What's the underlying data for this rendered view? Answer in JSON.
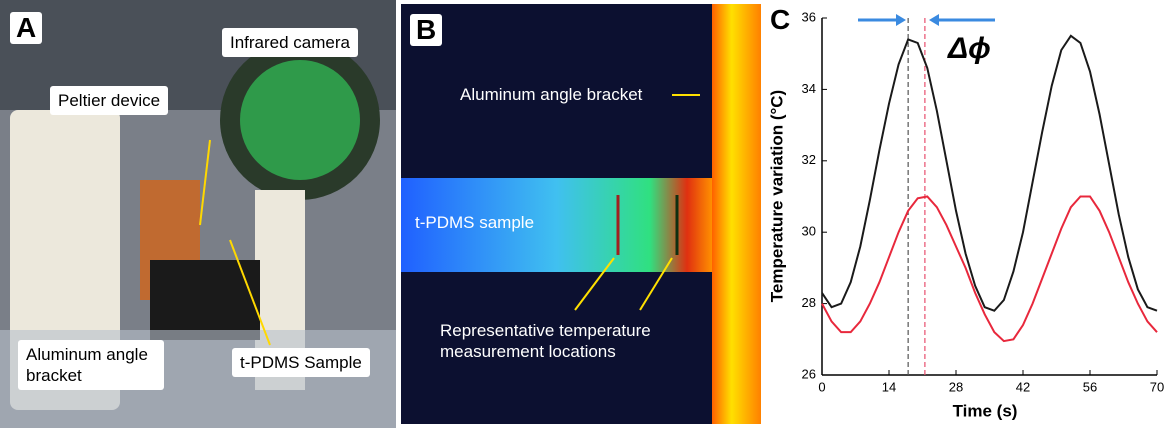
{
  "panel_a": {
    "letter": "A",
    "labels": [
      "Infrared camera",
      "Peltier device",
      "Aluminum angle bracket",
      "t-PDMS Sample"
    ]
  },
  "panel_b": {
    "letter": "B",
    "labels": [
      "Aluminum angle bracket",
      "t-PDMS sample",
      "Representative temperature measurement locations"
    ]
  },
  "chart_data": {
    "type": "line",
    "panel_label": "C",
    "annotation": "Δϕ",
    "x_label": "Time (s)",
    "y_label": "Temperature variation (°C)",
    "x": [
      0,
      2,
      4,
      6,
      8,
      10,
      12,
      14,
      16,
      18,
      20,
      22,
      24,
      26,
      28,
      30,
      32,
      34,
      36,
      38,
      40,
      42,
      44,
      46,
      48,
      50,
      52,
      54,
      56,
      58,
      60,
      62,
      64,
      66,
      68,
      70
    ],
    "series": [
      {
        "color": "#1a1a1a",
        "values": [
          28.3,
          27.9,
          28.0,
          28.6,
          29.6,
          30.9,
          32.3,
          33.6,
          34.7,
          35.4,
          35.3,
          34.6,
          33.4,
          32.0,
          30.6,
          29.4,
          28.5,
          27.9,
          27.8,
          28.1,
          28.9,
          30.0,
          31.4,
          32.8,
          34.1,
          35.1,
          35.5,
          35.3,
          34.5,
          33.3,
          31.9,
          30.5,
          29.3,
          28.4,
          27.9,
          27.8
        ]
      },
      {
        "color": "#e8283c",
        "values": [
          28.0,
          27.5,
          27.2,
          27.2,
          27.5,
          28.0,
          28.6,
          29.3,
          30.0,
          30.6,
          30.95,
          31.0,
          30.7,
          30.2,
          29.6,
          29.0,
          28.3,
          27.7,
          27.2,
          26.95,
          27.0,
          27.4,
          28.0,
          28.7,
          29.4,
          30.1,
          30.7,
          31.0,
          31.0,
          30.6,
          30.0,
          29.3,
          28.6,
          28.0,
          27.5,
          27.2
        ]
      }
    ],
    "reference_lines": [
      {
        "x": 18,
        "color": "#555555"
      },
      {
        "x": 21.5,
        "color": "#e8506e"
      }
    ],
    "xlim": [
      0,
      70
    ],
    "xticks": [
      0,
      14,
      28,
      42,
      56,
      70
    ],
    "ylim": [
      26,
      36
    ],
    "yticks": [
      26,
      28,
      30,
      32,
      34,
      36
    ]
  }
}
